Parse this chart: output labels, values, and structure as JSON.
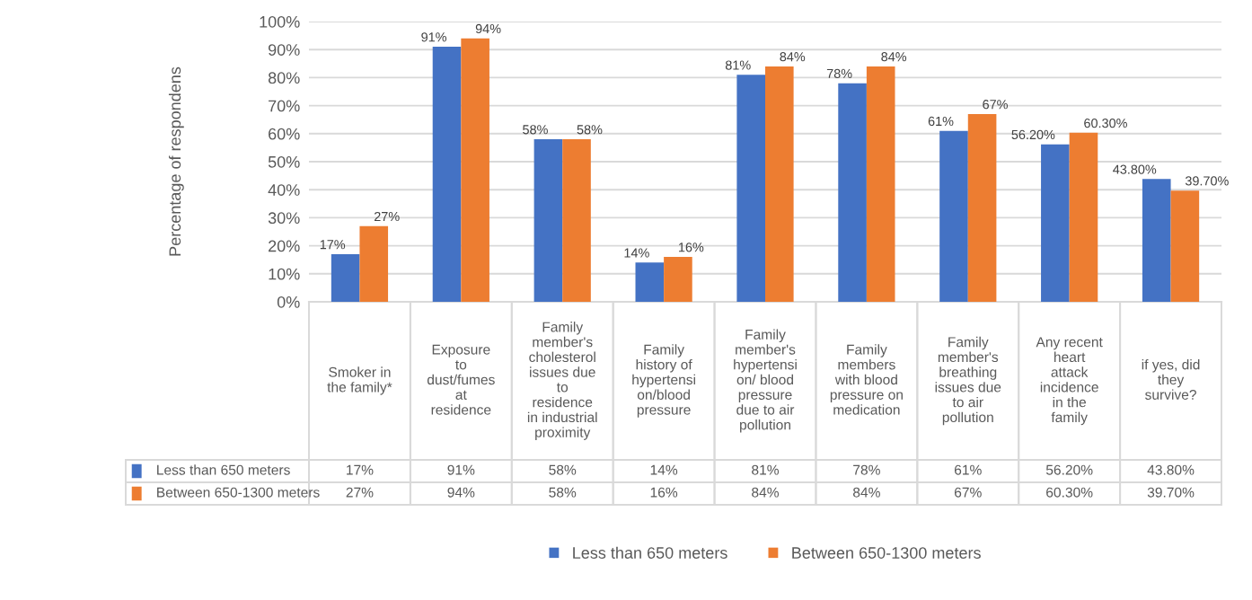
{
  "chart_data": {
    "type": "bar",
    "ylabel": "Percentage of respondens",
    "categories": [
      "Smoker in\nthe family*",
      "Exposure\nto\ndust/fumes\nat\nresidence",
      "Family\nmember's\ncholesterol\nissues due\nto\nresidence\nin industrial\nproximity",
      "Family\nhistory of\nhypertensi\non/blood\npressure",
      "Family\nmember's\nhypertensi\non/ blood\npressure\ndue to air\npollution",
      "Family\nmembers\nwith blood\npressure on\nmedication",
      "Family\nmember's\nbreathing\nissues due\nto air\npollution",
      "Any recent\nheart\nattack\nincidence\nin the\nfamily",
      "if yes, did\nthey\nsurvive?"
    ],
    "series": [
      {
        "name": "Less than 650 meters",
        "color": "#4472c4",
        "values": [
          17,
          91,
          58,
          14,
          81,
          78,
          61,
          56.2,
          43.8
        ],
        "value_labels": [
          "17%",
          "91%",
          "58%",
          "14%",
          "81%",
          "78%",
          "61%",
          "56.20%",
          "43.80%"
        ]
      },
      {
        "name": "Between 650-1300 meters",
        "color": "#ed7d31",
        "values": [
          27,
          94,
          58,
          16,
          84,
          84,
          67,
          60.3,
          39.7
        ],
        "value_labels": [
          "27%",
          "94%",
          "58%",
          "16%",
          "84%",
          "84%",
          "67%",
          "60.30%",
          "39.70%"
        ]
      }
    ],
    "ylim": [
      0,
      100
    ],
    "yticks": [
      {
        "value": 0,
        "label": "0%"
      },
      {
        "value": 10,
        "label": "10%"
      },
      {
        "value": 20,
        "label": "20%"
      },
      {
        "value": 30,
        "label": "30%"
      },
      {
        "value": 40,
        "label": "40%"
      },
      {
        "value": 50,
        "label": "50%"
      },
      {
        "value": 60,
        "label": "60%"
      },
      {
        "value": 70,
        "label": "70%"
      },
      {
        "value": 80,
        "label": "80%"
      },
      {
        "value": 90,
        "label": "90%"
      },
      {
        "value": 100,
        "label": "100%"
      }
    ],
    "grid": "y",
    "legend": "bottom"
  }
}
